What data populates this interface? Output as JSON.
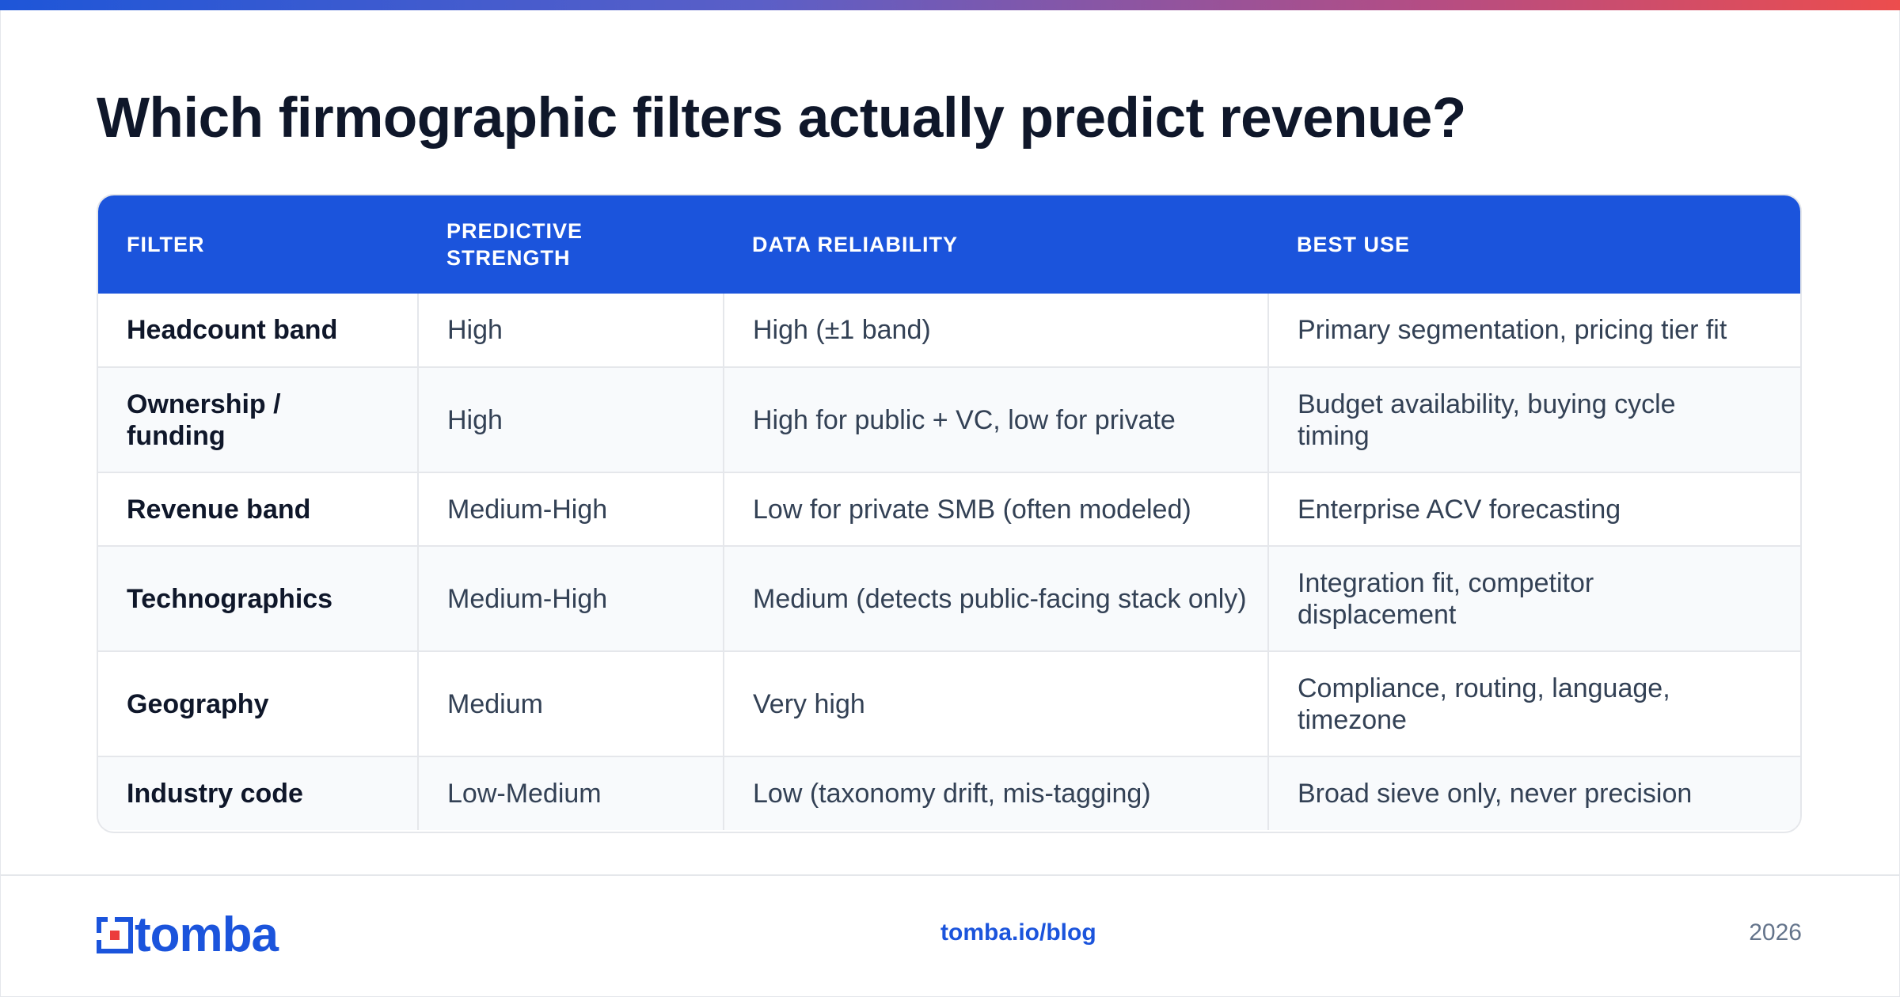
{
  "title": "Which firmographic filters actually predict revenue?",
  "colors": {
    "accent": "#1b54dc",
    "header_bg": "#1b54dc",
    "title": "#0f172a",
    "gradient_end": "#ec4d4d"
  },
  "table": {
    "headers": [
      "FILTER",
      "PREDICTIVE STRENGTH",
      "DATA RELIABILITY",
      "BEST USE"
    ],
    "rows": [
      [
        "Headcount band",
        "High",
        "High (±1 band)",
        "Primary segmentation, pricing tier fit"
      ],
      [
        "Ownership / funding",
        "High",
        "High for public + VC, low for private",
        "Budget availability, buying cycle timing"
      ],
      [
        "Revenue band",
        "Medium-High",
        "Low for private SMB (often modeled)",
        "Enterprise ACV forecasting"
      ],
      [
        "Technographics",
        "Medium-High",
        "Medium (detects public-facing stack only)",
        "Integration fit, competitor displacement"
      ],
      [
        "Geography",
        "Medium",
        "Very high",
        "Compliance, routing, language, timezone"
      ],
      [
        "Industry code",
        "Low-Medium",
        "Low (taxonomy drift, mis-tagging)",
        "Broad sieve only, never precision"
      ]
    ]
  },
  "footer": {
    "logo_text": "tomba",
    "logo_icon": "tomba-logo-icon",
    "link": "tomba.io/blog",
    "year": "2026"
  }
}
